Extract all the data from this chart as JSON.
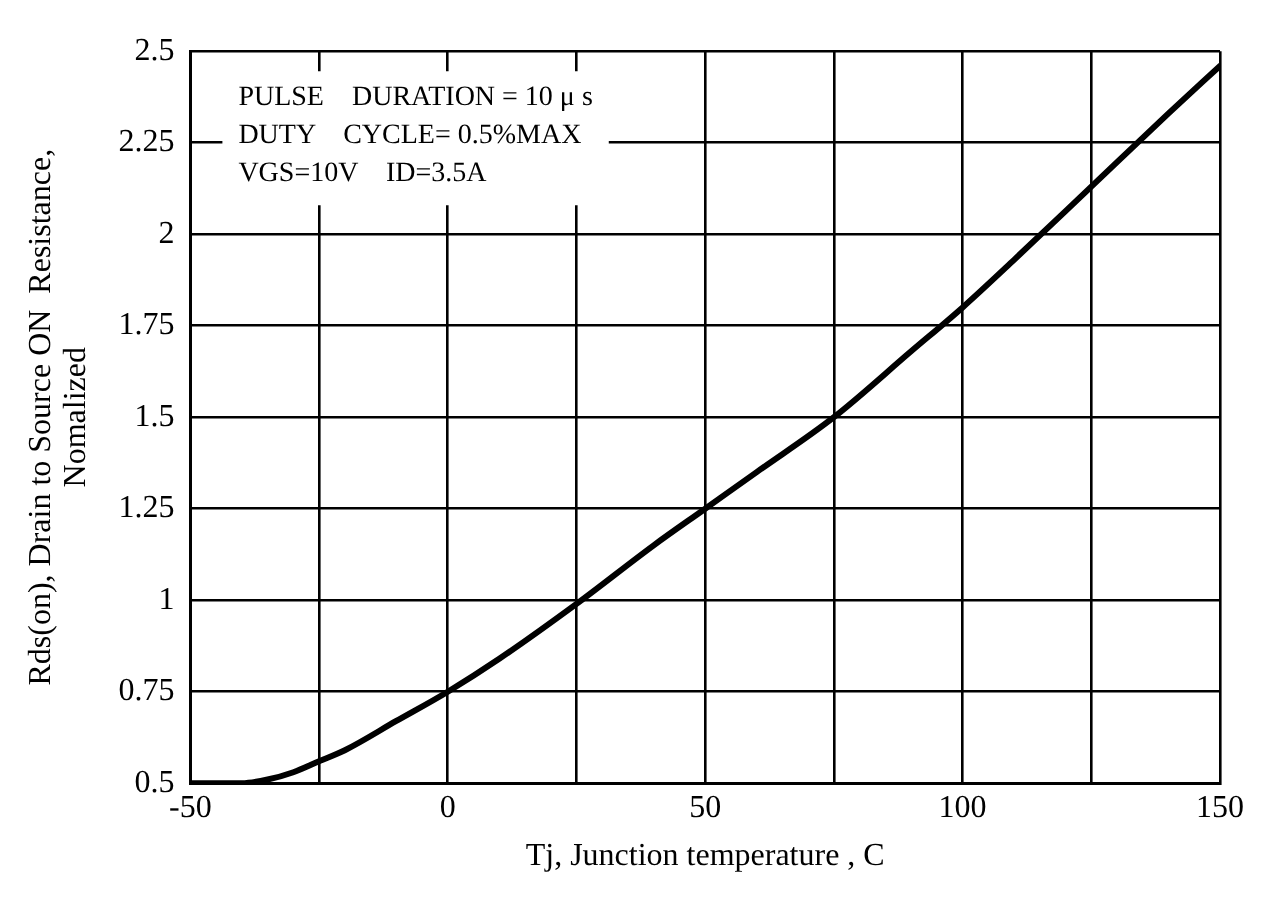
{
  "chart_data": {
    "type": "line",
    "xlabel": "Tj, Junction temperature , C",
    "ylabel": "Rds(on), Drain to Source ON  Resistance,\nNomalized",
    "annotations": [
      "PULSE    DURATION = 10 μ s",
      "DUTY    CYCLE= 0.5%MAX",
      "VGS=10V    ID=3.5A"
    ],
    "x": [
      -50,
      -45,
      -40,
      -35,
      -30,
      -25,
      -20,
      -10,
      0,
      10,
      25,
      40,
      50,
      60,
      75,
      90,
      100,
      110,
      125,
      140,
      150
    ],
    "series": [
      {
        "color": "#000000",
        "values": [
          0.5,
          0.5,
          0.5,
          0.51,
          0.53,
          0.56,
          0.59,
          0.67,
          0.75,
          0.84,
          0.99,
          1.15,
          1.25,
          1.35,
          1.5,
          1.68,
          1.8,
          1.93,
          2.13,
          2.33,
          2.46
        ]
      }
    ],
    "xlim": [
      -50,
      150
    ],
    "xticks": [
      -50,
      {
        "value": -25,
        "label": null
      },
      0,
      {
        "value": 25,
        "label": null
      },
      50,
      {
        "value": 75,
        "label": null
      },
      100,
      {
        "value": 125,
        "label": null
      },
      150
    ],
    "ylim": [
      0.5,
      2.5
    ],
    "yticks": [
      0.5,
      0.75,
      1,
      1.25,
      1.5,
      1.75,
      2,
      2.25,
      2.5
    ],
    "grid": true,
    "legend": false,
    "marker": "none",
    "line_style": "solid"
  }
}
